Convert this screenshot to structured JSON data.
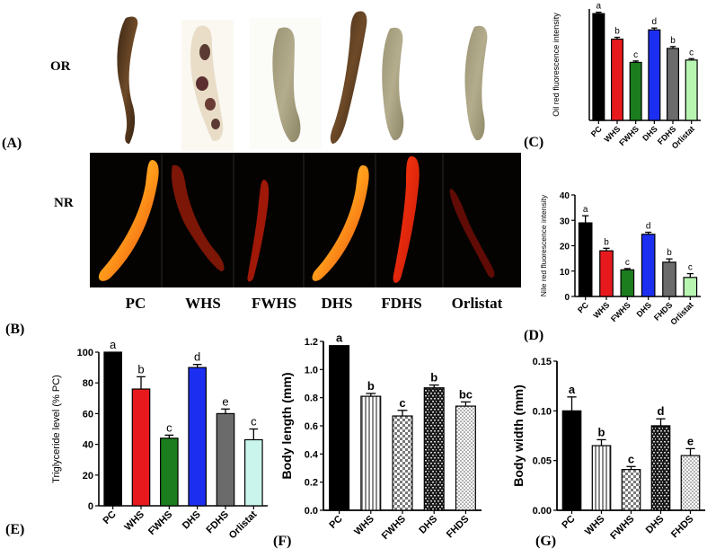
{
  "panel_labels": {
    "A": "(A)",
    "B": "(B)",
    "C": "(C)",
    "D": "(D)",
    "E": "(E)",
    "F": "(F)",
    "G": "(G)"
  },
  "image_panel": {
    "row_labels": [
      "OR",
      "NR"
    ],
    "columns": [
      "PC",
      "WHS",
      "FWHS",
      "DHS",
      "FDHS",
      "Orlistat"
    ]
  },
  "colors": {
    "black": "#000000",
    "red": "#e8191d",
    "green": "#1b7d1d",
    "blue": "#1c2ff0",
    "gray": "#6b6b6b",
    "pale_green": "#b7f5b0",
    "pale_teal": "#c9f5ec"
  },
  "chart_data": [
    {
      "id": "C",
      "type": "bar",
      "ylabel": "Oil red fluorescence intensity",
      "categories": [
        "PC",
        "WHS",
        "FWHS",
        "DHS",
        "FDHS",
        "Orlistat"
      ],
      "values": [
        230,
        175,
        125,
        195,
        155,
        130
      ],
      "errors": [
        3,
        4,
        3,
        4,
        4,
        3
      ],
      "letters": [
        "a",
        "b",
        "c",
        "d",
        "b",
        "c"
      ],
      "ylim": [
        0,
        240
      ],
      "yticks": [],
      "colors": [
        "#000000",
        "#e8191d",
        "#1b7d1d",
        "#1c2ff0",
        "#6b6b6b",
        "#b7f5b0"
      ]
    },
    {
      "id": "D",
      "type": "bar",
      "ylabel": "Nile red fluorescence intensity",
      "categories": [
        "PC",
        "WHS",
        "FWHS",
        "DHS",
        "FHDS",
        "Orlistat"
      ],
      "values": [
        29,
        18,
        10.5,
        24.5,
        13.5,
        7.5
      ],
      "errors": [
        2.8,
        1,
        0.5,
        0.8,
        1.3,
        1.5
      ],
      "letters": [
        "a",
        "b",
        "c",
        "d",
        "b",
        "c"
      ],
      "ylim": [
        0,
        40
      ],
      "yticks": [
        0,
        10,
        20,
        30,
        40
      ],
      "colors": [
        "#000000",
        "#e8191d",
        "#1b7d1d",
        "#1c2ff0",
        "#6b6b6b",
        "#b7f5b0"
      ]
    },
    {
      "id": "E",
      "type": "bar",
      "ylabel": "Triglyceride level (% PC)",
      "categories": [
        "PC",
        "WHS",
        "FWHS",
        "DHS",
        "FDHS",
        "Orlistat"
      ],
      "values": [
        100,
        76,
        44,
        90,
        60,
        43
      ],
      "errors": [
        0,
        8,
        2,
        2,
        3,
        7
      ],
      "letters": [
        "a",
        "b",
        "c",
        "d",
        "e",
        "c"
      ],
      "ylim": [
        0,
        100
      ],
      "yticks": [
        0,
        20,
        40,
        60,
        80,
        100
      ],
      "colors": [
        "#000000",
        "#e8191d",
        "#1b7d1d",
        "#1c2ff0",
        "#6b6b6b",
        "#c9f5ec"
      ]
    },
    {
      "id": "F",
      "type": "bar",
      "ylabel": "Body length (mm)",
      "categories": [
        "PC",
        "WHS",
        "FWHS",
        "DHS",
        "FHDS"
      ],
      "values": [
        1.17,
        0.81,
        0.67,
        0.87,
        0.74
      ],
      "errors": [
        0,
        0.02,
        0.04,
        0.02,
        0.03
      ],
      "letters": [
        "a",
        "b",
        "c",
        "b",
        "bc"
      ],
      "ylim": [
        0,
        1.2
      ],
      "yticks": [
        0.0,
        0.2,
        0.4,
        0.6,
        0.8,
        1.0,
        1.2
      ],
      "patterns": [
        "solid",
        "vstripe",
        "check",
        "brick",
        "dots"
      ]
    },
    {
      "id": "G",
      "type": "bar",
      "ylabel": "Body width (mm)",
      "categories": [
        "PC",
        "WHS",
        "FWHS",
        "DHS",
        "FHDS"
      ],
      "values": [
        0.1,
        0.065,
        0.041,
        0.085,
        0.055
      ],
      "errors": [
        0.014,
        0.006,
        0.003,
        0.007,
        0.007
      ],
      "letters": [
        "a",
        "b",
        "c",
        "d",
        "e"
      ],
      "ylim": [
        0,
        0.15
      ],
      "yticks": [
        0.0,
        0.05,
        0.1,
        0.15
      ],
      "patterns": [
        "solid",
        "vstripe",
        "check",
        "brick",
        "dots"
      ]
    }
  ]
}
